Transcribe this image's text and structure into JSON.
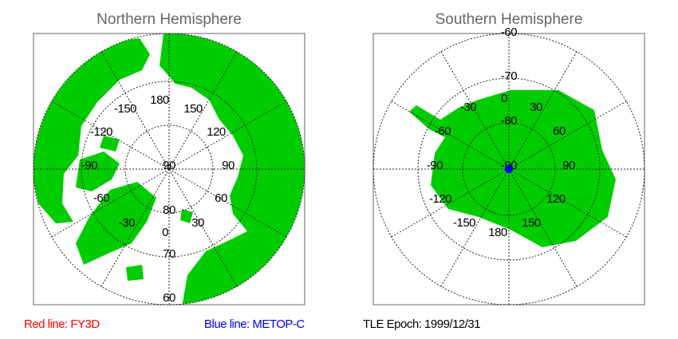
{
  "north": {
    "title": "Northern Hemisphere",
    "lon_labels": [
      "180",
      "150",
      "120",
      "90",
      "60",
      "30",
      "0",
      "-30",
      "-60",
      "-90",
      "-120",
      "-150"
    ],
    "lat_labels": [
      "90",
      "80",
      "70",
      "60"
    ]
  },
  "south": {
    "title": "Southern Hemisphere",
    "lon_labels": [
      "180",
      "150",
      "120",
      "90",
      "60",
      "30",
      "0",
      "-30",
      "-60",
      "-90",
      "-120",
      "-150"
    ],
    "lat_labels": [
      "-90",
      "-80",
      "-70",
      "-60"
    ],
    "satellite_marker_color": "#0000ff"
  },
  "colors": {
    "land": "#00cc00",
    "red_line": "#ff0000",
    "blue_line": "#0000ff"
  },
  "legend": {
    "red": "Red line: FY3D",
    "blue": "Blue line: METOP-C",
    "epoch": "TLE Epoch: 1999/12/31"
  }
}
